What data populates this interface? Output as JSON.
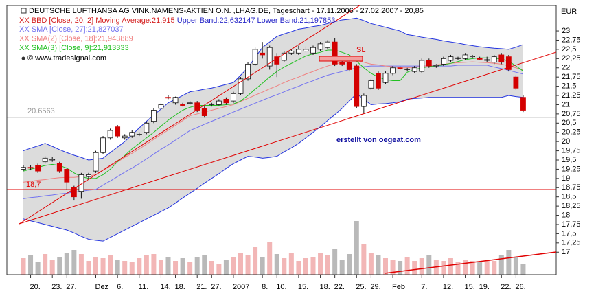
{
  "chart_data": {
    "type": "candlestick",
    "title": "DEUTSCHE LUFTHANSA AG VINK.NAMENS-AKTIEN O.N. ,LHAG.DE, Tageschart - 17.11.2006 - 27.02.2007 - 20,85",
    "copyright": "© www.tradesignal.com",
    "y_unit": "EUR",
    "categories": [
      null,
      "20.",
      null,
      null,
      "23.",
      null,
      "27.",
      null,
      null,
      null,
      "Dez",
      null,
      null,
      "6.",
      null,
      null,
      "11.",
      null,
      null,
      "14.",
      null,
      "18.",
      null,
      null,
      "21.",
      null,
      "27.",
      null,
      null,
      "2007",
      null,
      null,
      null,
      "8.",
      null,
      "10.",
      null,
      null,
      "15.",
      null,
      null,
      "18.",
      null,
      "22.",
      null,
      null,
      "25.",
      null,
      "29.",
      null,
      null,
      "Feb",
      null,
      null,
      null,
      "7.",
      null,
      null,
      "12.",
      null,
      null,
      "15.",
      null,
      "19.",
      null,
      null,
      "22.",
      null,
      "26.",
      null
    ],
    "open": [
      19.25,
      19.3,
      19.35,
      19.45,
      19.5,
      19.4,
      19.25,
      18.75,
      18.65,
      19.05,
      19.2,
      19.7,
      20.1,
      20.4,
      20.1,
      20.15,
      20.2,
      20.25,
      20.55,
      20.9,
      21.2,
      21.05,
      21.0,
      21.05,
      21.05,
      20.9,
      21.0,
      21.0,
      21.15,
      21.1,
      21.3,
      21.7,
      22.1,
      22.4,
      22.05,
      22.3,
      22.2,
      22.4,
      22.4,
      22.45,
      22.4,
      22.5,
      22.55,
      22.7,
      22.15,
      22.15,
      22.05,
      20.95,
      21.45,
      21.85,
      21.6,
      21.85,
      22.0,
      21.95,
      21.9,
      21.9,
      22.2,
      22.05,
      22.1,
      22.2,
      22.25,
      22.25,
      22.3,
      22.25,
      22.2,
      22.15,
      22.35,
      22.3,
      21.75,
      21.2
    ],
    "high": [
      19.35,
      19.35,
      19.4,
      19.6,
      19.58,
      19.45,
      19.3,
      18.8,
      19.15,
      19.15,
      19.75,
      20.15,
      20.35,
      20.45,
      20.2,
      20.3,
      20.25,
      20.55,
      20.9,
      21.05,
      21.25,
      21.22,
      21.05,
      21.1,
      21.1,
      20.95,
      21.05,
      21.15,
      21.2,
      21.35,
      21.75,
      22.15,
      22.55,
      22.7,
      22.6,
      22.4,
      22.45,
      22.5,
      22.6,
      22.58,
      22.6,
      22.7,
      22.75,
      22.8,
      22.2,
      22.2,
      22.1,
      21.3,
      21.7,
      21.9,
      21.9,
      22.05,
      22.05,
      22.0,
      22.05,
      22.25,
      22.25,
      22.1,
      22.3,
      22.35,
      22.3,
      22.4,
      22.35,
      22.3,
      22.3,
      22.35,
      22.4,
      22.35,
      21.8,
      21.25
    ],
    "low": [
      19.2,
      19.22,
      19.15,
      19.4,
      19.45,
      19.15,
      18.7,
      18.4,
      18.45,
      19.0,
      19.15,
      19.65,
      20.05,
      20.1,
      20.05,
      20.1,
      20.15,
      20.2,
      20.5,
      20.85,
      21.15,
      21.0,
      20.95,
      21.0,
      20.8,
      20.65,
      20.95,
      20.98,
      21.0,
      21.05,
      21.25,
      21.65,
      22.05,
      22.25,
      21.95,
      21.75,
      22.15,
      22.35,
      22.35,
      22.42,
      22.35,
      22.45,
      22.5,
      22.05,
      22.05,
      21.9,
      20.9,
      20.75,
      21.4,
      21.4,
      21.55,
      21.8,
      21.95,
      21.9,
      21.85,
      21.85,
      22.0,
      22.0,
      22.05,
      22.15,
      22.2,
      22.2,
      22.25,
      22.2,
      22.15,
      22.1,
      22.1,
      21.9,
      21.4,
      20.8
    ],
    "close": [
      19.3,
      19.28,
      19.2,
      19.55,
      19.52,
      19.2,
      18.9,
      18.5,
      19.1,
      19.1,
      19.7,
      20.1,
      20.3,
      20.15,
      20.15,
      20.25,
      20.2,
      20.5,
      20.85,
      21.0,
      21.18,
      21.2,
      20.98,
      21.05,
      20.85,
      20.7,
      21.02,
      21.1,
      21.05,
      21.3,
      21.7,
      22.1,
      22.5,
      22.35,
      22.55,
      22.1,
      22.4,
      22.45,
      22.5,
      22.5,
      22.55,
      22.65,
      22.7,
      22.1,
      22.1,
      21.95,
      20.95,
      21.25,
      21.65,
      21.45,
      21.85,
      22.0,
      21.98,
      21.97,
      22.0,
      22.2,
      22.05,
      22.07,
      22.25,
      22.3,
      22.27,
      22.35,
      22.32,
      22.23,
      22.22,
      22.3,
      22.15,
      21.95,
      21.45,
      20.85
    ],
    "up_color": "#ffffff",
    "down_color": "#d40000",
    "volume": {
      "ylim": [
        0,
        5
      ],
      "up_color": "#f2b6b6",
      "down_color": "#b9b9b9",
      "values": [
        1.2,
        1.4,
        0.9,
        1.5,
        1.1,
        1.3,
        1.6,
        1.8,
        1.5,
        1.0,
        1.3,
        1.2,
        1.4,
        1.1,
        1.0,
        0.9,
        1.2,
        1.4,
        1.5,
        1.1,
        1.3,
        1.0,
        1.2,
        0.9,
        1.3,
        1.4,
        1.0,
        0.8,
        1.1,
        1.3,
        1.6,
        1.4,
        2.0,
        1.3,
        2.4,
        1.5,
        1.2,
        1.6,
        1.0,
        1.2,
        1.3,
        1.6,
        1.4,
        1.9,
        1.1,
        1.5,
        3.9,
        2.2,
        1.6,
        1.4,
        1.2,
        1.1,
        1.0,
        1.3,
        1.0,
        1.2,
        1.4,
        1.1,
        1.0,
        1.2,
        0.9,
        1.1,
        1.0,
        0.9,
        1.1,
        1.0,
        1.4,
        1.8,
        1.3,
        0.8
      ]
    },
    "bands": {
      "name": "XX BBD [Close, 20, 2] Moving Average:21,915",
      "name_color": "#d42020",
      "upper_label": "Upper Band:22,632147",
      "lower_label": "Lower Band:21,197853",
      "label_color": "#2828c8",
      "line_color": "#2233e0",
      "fill": "#dcdcdc",
      "upper": [
        19.75,
        19.82,
        19.88,
        19.95,
        19.87,
        19.78,
        19.7,
        19.63,
        19.57,
        19.5,
        19.52,
        19.55,
        19.7,
        19.85,
        20.0,
        20.18,
        20.37,
        20.55,
        20.72,
        20.88,
        21.05,
        21.15,
        21.25,
        21.35,
        21.38,
        21.42,
        21.45,
        21.5,
        21.55,
        21.6,
        21.8,
        22.0,
        22.28,
        22.55,
        22.7,
        22.85,
        22.92,
        22.98,
        23.05,
        23.08,
        23.12,
        23.15,
        23.2,
        23.25,
        23.3,
        23.32,
        23.35,
        23.28,
        23.2,
        23.15,
        23.1,
        23.05,
        23.0,
        22.9,
        22.87,
        22.83,
        22.8,
        22.77,
        22.73,
        22.7,
        22.67,
        22.63,
        22.6,
        22.57,
        22.55,
        22.53,
        22.52,
        22.5,
        22.56,
        22.63
      ],
      "lower": [
        17.9,
        17.85,
        17.8,
        17.75,
        17.7,
        17.65,
        17.6,
        17.52,
        17.43,
        17.35,
        17.32,
        17.3,
        17.4,
        17.5,
        17.6,
        17.7,
        17.8,
        17.9,
        18.0,
        18.1,
        18.2,
        18.33,
        18.47,
        18.6,
        18.73,
        18.87,
        19.0,
        19.13,
        19.27,
        19.4,
        19.5,
        19.6,
        19.58,
        19.55,
        19.57,
        19.6,
        19.72,
        19.83,
        19.95,
        20.1,
        20.25,
        20.4,
        20.57,
        20.73,
        20.9,
        21.1,
        21.3,
        21.15,
        21.0,
        21.02,
        21.03,
        21.05,
        21.08,
        21.15,
        21.17,
        21.18,
        21.2,
        21.2,
        21.2,
        21.2,
        21.2,
        21.2,
        21.2,
        21.2,
        21.2,
        21.2,
        21.2,
        21.25,
        21.22,
        21.2
      ]
    },
    "series": [
      {
        "name": "XX SMA [Close, 27]:21,827037",
        "color": "#7272f0",
        "values": [
          18.45,
          18.48,
          18.5,
          18.53,
          18.55,
          18.58,
          18.6,
          18.63,
          18.65,
          18.68,
          18.7,
          18.82,
          18.93,
          19.05,
          19.17,
          19.28,
          19.4,
          19.53,
          19.66,
          19.79,
          19.91,
          20.04,
          20.17,
          20.3,
          20.38,
          20.47,
          20.55,
          20.63,
          20.72,
          20.8,
          20.88,
          20.96,
          21.04,
          21.12,
          21.2,
          21.27,
          21.35,
          21.43,
          21.5,
          21.58,
          21.65,
          21.73,
          21.8,
          21.85,
          21.9,
          21.95,
          22.0,
          22.03,
          22.05,
          22.05,
          22.05,
          22.05,
          22.05,
          22.05,
          22.05,
          22.05,
          22.05,
          22.05,
          22.05,
          22.05,
          22.07,
          22.07,
          22.07,
          22.07,
          22.07,
          22.02,
          21.98,
          21.93,
          21.88,
          21.83
        ]
      },
      {
        "name": "XX SMA(2) [Close, 18]:21,943889",
        "color": "#f08080",
        "values": [
          18.9,
          18.92,
          18.95,
          18.97,
          19.0,
          19.02,
          19.03,
          19.03,
          19.05,
          19.07,
          19.1,
          19.22,
          19.33,
          19.45,
          19.57,
          19.68,
          19.8,
          19.93,
          20.06,
          20.19,
          20.31,
          20.44,
          20.57,
          20.7,
          20.75,
          20.8,
          20.85,
          20.9,
          20.95,
          21.0,
          21.09,
          21.17,
          21.26,
          21.34,
          21.43,
          21.51,
          21.6,
          21.68,
          21.75,
          21.83,
          21.9,
          21.98,
          22.05,
          22.1,
          22.15,
          22.18,
          22.2,
          22.15,
          22.1,
          22.08,
          22.05,
          22.03,
          22.0,
          22.0,
          22.02,
          22.04,
          22.06,
          22.08,
          22.1,
          22.12,
          22.14,
          22.15,
          22.16,
          22.15,
          22.14,
          22.12,
          22.1,
          22.05,
          22.0,
          21.94
        ]
      },
      {
        "name": "XX SMA(3) [Close, 9]:21,913333",
        "color": "#22c022",
        "values": [
          19.2,
          19.25,
          19.3,
          19.35,
          19.38,
          19.35,
          19.28,
          19.15,
          19.05,
          19.0,
          19.0,
          19.1,
          19.25,
          19.45,
          19.62,
          19.8,
          19.95,
          20.1,
          20.25,
          20.42,
          20.58,
          20.72,
          20.85,
          20.93,
          20.98,
          20.98,
          20.98,
          20.98,
          21.0,
          21.02,
          21.1,
          21.25,
          21.42,
          21.58,
          21.75,
          21.9,
          22.02,
          22.12,
          22.22,
          22.32,
          22.38,
          22.42,
          22.48,
          22.48,
          22.42,
          22.35,
          22.18,
          22.0,
          21.85,
          21.75,
          21.68,
          21.65,
          21.65,
          21.88,
          21.95,
          22.0,
          22.03,
          22.05,
          22.08,
          22.12,
          22.17,
          22.22,
          22.25,
          22.27,
          22.27,
          22.26,
          22.24,
          22.18,
          22.05,
          21.91
        ]
      }
    ],
    "ylim": [
      16.39,
      23.69
    ],
    "yticks": [
      23,
      {
        "value": 22.75,
        "label": "22,75"
      },
      {
        "value": 22.5,
        "label": "22,5"
      },
      {
        "value": 22.25,
        "label": "22,25"
      },
      22,
      {
        "value": 21.75,
        "label": "21,75"
      },
      {
        "value": 21.5,
        "label": "21,5"
      },
      {
        "value": 21.25,
        "label": "21,25"
      },
      21,
      {
        "value": 20.75,
        "label": "20,75"
      },
      {
        "value": 20.5,
        "label": "20,5"
      },
      {
        "value": 20.25,
        "label": "20,25"
      },
      20,
      {
        "value": 19.75,
        "label": "19,75"
      },
      {
        "value": 19.5,
        "label": "19,5"
      },
      {
        "value": 19.25,
        "label": "19,25"
      },
      19,
      {
        "value": 18.75,
        "label": "18,75"
      },
      {
        "value": 18.5,
        "label": "18,5"
      },
      {
        "value": 18.25,
        "label": "18,25"
      },
      18,
      {
        "value": 17.75,
        "label": "17,75"
      },
      {
        "value": 17.5,
        "label": "17,5"
      },
      {
        "value": 17.25,
        "label": "17,25"
      },
      17
    ],
    "hline": {
      "value": 18.7,
      "label": "18,7",
      "color": "#e00000"
    },
    "reference": {
      "value": 20.6563,
      "color": "#b0b0b0"
    },
    "annotations": [
      {
        "text": "SL",
        "color": "#e00000"
      },
      {
        "text": "erstellt von oegeat.com",
        "color": "#1010a0"
      }
    ]
  }
}
